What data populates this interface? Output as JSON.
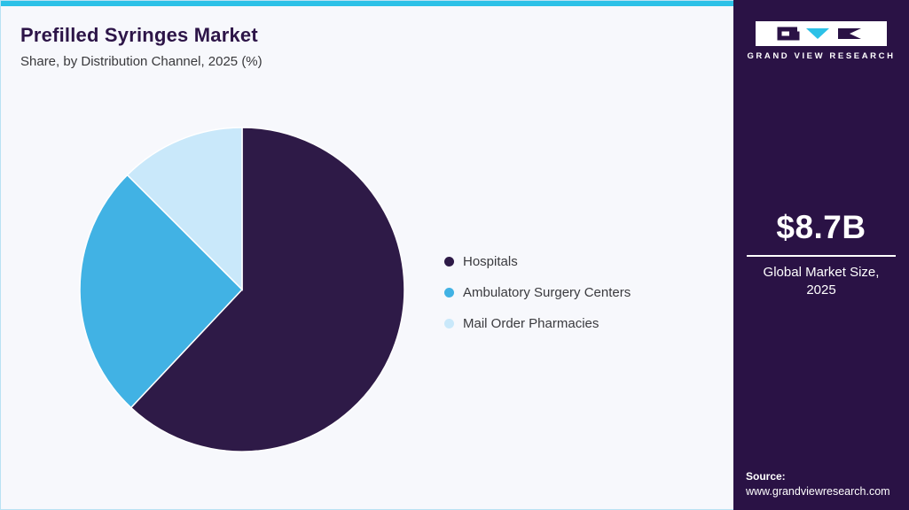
{
  "header": {
    "title": "Prefilled Syringes Market",
    "subtitle": "Share, by Distribution Channel, 2025 (%)"
  },
  "sidebar": {
    "logo_text": "GRAND VIEW RESEARCH",
    "market_size": "$8.7B",
    "market_size_label": "Global Market Size, 2025",
    "source_label": "Source:",
    "source_url": "www.grandviewresearch.com"
  },
  "chart_data": {
    "type": "pie",
    "title": "Prefilled Syringes Market Share, by Distribution Channel, 2025 (%)",
    "start_angle_deg": 0,
    "direction": "clockwise",
    "legend_position": "right",
    "slices": [
      {
        "label": "Hospitals",
        "value": 62.0,
        "color": "#2e1a47"
      },
      {
        "label": "Ambulatory Surgery Centers",
        "value": 25.5,
        "color": "#41b2e4"
      },
      {
        "label": "Mail Order Pharmacies",
        "value": 12.5,
        "color": "#c9e8fa"
      }
    ]
  },
  "colors": {
    "accent_cyan": "#2cc1e7",
    "dark_purple": "#2a1245",
    "panel_bg": "#f7f8fc"
  }
}
